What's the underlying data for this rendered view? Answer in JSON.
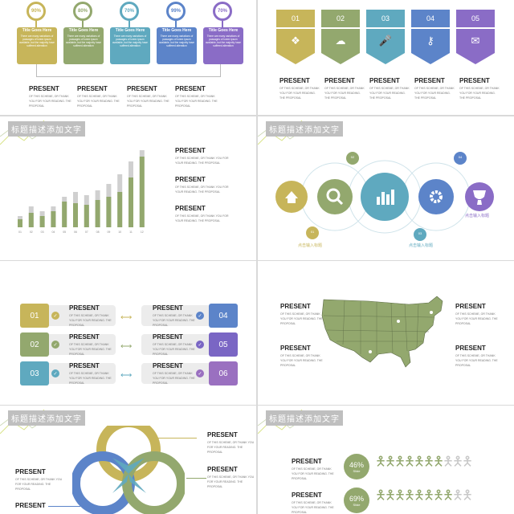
{
  "header_label": "标题描述添加文字",
  "present": "PRESENT",
  "present_desc": "OF THIS SCHEME, OR THANK YOU FOR YOUR READING. THE PROPOSAL",
  "slide1": {
    "items": [
      {
        "pct": "90%",
        "title": "Title Goes Here",
        "text": "There are many variations of passages of lorem ipsum available, but the majority have suffered alteration",
        "color": "#c7b55a"
      },
      {
        "pct": "80%",
        "title": "Title Goes Here",
        "text": "There are many variations of passages of lorem ipsum available, but the majority have suffered alteration",
        "color": "#93a86e"
      },
      {
        "pct": "70%",
        "title": "Title Goes Here",
        "text": "There are many variations of passages of lorem ipsum available, but the majority have suffered alteration",
        "color": "#5fa9bf"
      },
      {
        "pct": "99%",
        "title": "Title Goes Here",
        "text": "There are many variations of passages of lorem ipsum available, but the majority have suffered alteration",
        "color": "#5c84c9"
      },
      {
        "pct": "70%",
        "title": "Title Goes Here",
        "text": "There are many variations of passages of lorem ipsum available, but the majority have suffered alteration",
        "color": "#8a6cc6"
      }
    ]
  },
  "slide2": {
    "tags": [
      {
        "num": "01",
        "icon": "dropbox-icon",
        "color": "#c7b55a"
      },
      {
        "num": "02",
        "icon": "cloud-upload-icon",
        "color": "#93a86e"
      },
      {
        "num": "03",
        "icon": "microphone-icon",
        "color": "#5fa9bf"
      },
      {
        "num": "04",
        "icon": "key-icon",
        "color": "#5c84c9"
      },
      {
        "num": "05",
        "icon": "chat-icon",
        "color": "#8a6cc6"
      }
    ]
  },
  "chart_data": {
    "type": "bar",
    "categories": [
      "01",
      "02",
      "03",
      "04",
      "05",
      "06",
      "07",
      "08",
      "09",
      "10",
      "11",
      "12"
    ],
    "series": [
      {
        "values": [
          10,
          18,
          14,
          20,
          32,
          30,
          28,
          34,
          38,
          44,
          62,
          88
        ]
      },
      {
        "values": [
          14,
          26,
          20,
          26,
          38,
          44,
          40,
          46,
          54,
          66,
          82,
          96
        ]
      }
    ],
    "ylim": [
      0,
      100
    ],
    "colors": [
      "#93a86e",
      "#d0d0d0"
    ]
  },
  "slide4": {
    "nodes": [
      "01",
      "02",
      "03",
      "04"
    ],
    "caption": "点击输入标题",
    "icons": [
      "home-icon",
      "search-icon",
      "bar-chart-icon",
      "gear-icon",
      "trophy-icon"
    ]
  },
  "slide5": {
    "items": [
      {
        "num": "01",
        "color": "#c7b55a",
        "check": "#c7b55a"
      },
      {
        "num": "02",
        "color": "#93a86e",
        "check": "#93a86e"
      },
      {
        "num": "03",
        "color": "#5fa9bf",
        "check": "#5fa9bf"
      },
      {
        "num": "04",
        "color": "#5c84c9",
        "check": "#5c84c9"
      },
      {
        "num": "05",
        "color": "#7a66c4",
        "check": "#7a66c4"
      },
      {
        "num": "06",
        "color": "#9a70c0",
        "check": "#9a70c0"
      }
    ]
  },
  "slide7": {
    "labels": [
      "01",
      "02",
      "03"
    ]
  },
  "slide8": {
    "rows": [
      {
        "pct": "46%",
        "sub": "Slide"
      },
      {
        "pct": "69%",
        "sub": "Slide"
      }
    ]
  }
}
